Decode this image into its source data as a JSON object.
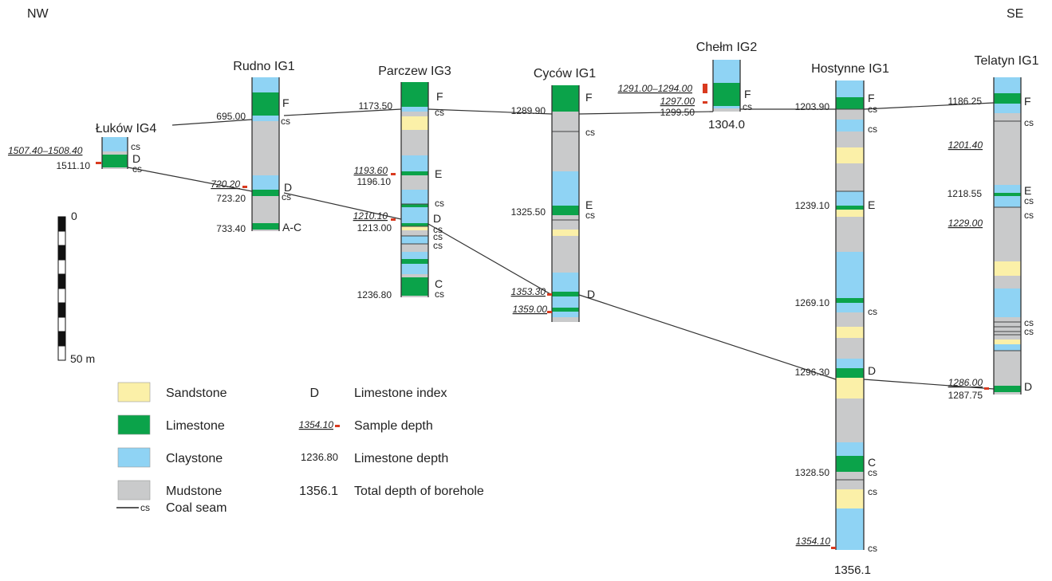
{
  "orientation": {
    "left": "NW",
    "right": "SE"
  },
  "colors": {
    "sandstone": "#fbf0a8",
    "limestone": "#0ba34a",
    "claystone": "#8fd3f4",
    "mudstone": "#c9cacb",
    "sample": "#d93a1f",
    "line": "#333333"
  },
  "boreholes": [
    {
      "id": "lukow",
      "name": "Łuków IG4",
      "labels": [
        {
          "text": "1507.40–1508.40",
          "kind": "sample",
          "underline": true
        },
        {
          "text": "1511.10",
          "kind": "depth"
        },
        {
          "text": "cs",
          "kind": "index"
        },
        {
          "text": "D",
          "kind": "index"
        },
        {
          "text": "cs",
          "kind": "index"
        }
      ]
    },
    {
      "id": "rudno",
      "name": "Rudno IG1",
      "labels": [
        {
          "text": "695.00",
          "kind": "depth"
        },
        {
          "text": "F",
          "kind": "index"
        },
        {
          "text": "cs",
          "kind": "index"
        },
        {
          "text": "720.20",
          "kind": "sample",
          "underline": true
        },
        {
          "text": "723.20",
          "kind": "depth"
        },
        {
          "text": "D",
          "kind": "index"
        },
        {
          "text": "cs",
          "kind": "index"
        },
        {
          "text": "733.40",
          "kind": "depth"
        },
        {
          "text": "A-C",
          "kind": "index"
        }
      ]
    },
    {
      "id": "parczew",
      "name": "Parczew IG3",
      "labels": [
        {
          "text": "1173.50",
          "kind": "depth"
        },
        {
          "text": "F",
          "kind": "index"
        },
        {
          "text": "cs",
          "kind": "index"
        },
        {
          "text": "1193.60",
          "kind": "sample",
          "underline": true
        },
        {
          "text": "1196.10",
          "kind": "depth"
        },
        {
          "text": "E",
          "kind": "index"
        },
        {
          "text": "cs",
          "kind": "index"
        },
        {
          "text": "1210.10",
          "kind": "sample",
          "underline": true
        },
        {
          "text": "1213.00",
          "kind": "depth"
        },
        {
          "text": "D",
          "kind": "index"
        },
        {
          "text": "cs",
          "kind": "index"
        },
        {
          "text": "cs",
          "kind": "index"
        },
        {
          "text": "cs",
          "kind": "index"
        },
        {
          "text": "1236.80",
          "kind": "depth"
        },
        {
          "text": "C",
          "kind": "index"
        },
        {
          "text": "cs",
          "kind": "index"
        }
      ]
    },
    {
      "id": "cycow",
      "name": "Cyców IG1",
      "labels": [
        {
          "text": "1289.90",
          "kind": "depth"
        },
        {
          "text": "F",
          "kind": "index"
        },
        {
          "text": "cs",
          "kind": "index"
        },
        {
          "text": "1325.50",
          "kind": "depth"
        },
        {
          "text": "E",
          "kind": "index"
        },
        {
          "text": "cs",
          "kind": "index"
        },
        {
          "text": "1353.30",
          "kind": "sample",
          "underline": true
        },
        {
          "text": "D",
          "kind": "index"
        },
        {
          "text": "1359.00",
          "kind": "sample",
          "underline": true
        }
      ]
    },
    {
      "id": "chelm",
      "name": "Chełm IG2",
      "labels": [
        {
          "text": "1291.00–1294.00",
          "kind": "sample",
          "underline": true
        },
        {
          "text": "1297.00",
          "kind": "sample",
          "underline": true
        },
        {
          "text": "1299.50",
          "kind": "depth"
        },
        {
          "text": "F",
          "kind": "index"
        },
        {
          "text": "cs",
          "kind": "index"
        },
        {
          "text": "1304.0",
          "kind": "total"
        }
      ]
    },
    {
      "id": "hostynne",
      "name": "Hostynne IG1",
      "labels": [
        {
          "text": "1203.90",
          "kind": "depth"
        },
        {
          "text": "F",
          "kind": "index"
        },
        {
          "text": "cs",
          "kind": "index"
        },
        {
          "text": "cs",
          "kind": "index"
        },
        {
          "text": "1239.10",
          "kind": "depth"
        },
        {
          "text": "E",
          "kind": "index"
        },
        {
          "text": "1269.10",
          "kind": "depth"
        },
        {
          "text": "cs",
          "kind": "index"
        },
        {
          "text": "1296.30",
          "kind": "depth"
        },
        {
          "text": "D",
          "kind": "index"
        },
        {
          "text": "1328.50",
          "kind": "depth"
        },
        {
          "text": "C",
          "kind": "index"
        },
        {
          "text": "cs",
          "kind": "index"
        },
        {
          "text": "cs",
          "kind": "index"
        },
        {
          "text": "1354.10",
          "kind": "sample",
          "underline": true
        },
        {
          "text": "cs",
          "kind": "index"
        },
        {
          "text": "1356.1",
          "kind": "total"
        }
      ]
    },
    {
      "id": "telatyn",
      "name": "Telatyn IG1",
      "labels": [
        {
          "text": "1186.25",
          "kind": "depth"
        },
        {
          "text": "F",
          "kind": "index"
        },
        {
          "text": "cs",
          "kind": "index"
        },
        {
          "text": "1201.40",
          "kind": "sample",
          "underline": true
        },
        {
          "text": "1218.55",
          "kind": "depth"
        },
        {
          "text": "E",
          "kind": "index"
        },
        {
          "text": "cs",
          "kind": "index"
        },
        {
          "text": "cs",
          "kind": "index"
        },
        {
          "text": "1229.00",
          "kind": "sample",
          "underline": true
        },
        {
          "text": "cs",
          "kind": "index"
        },
        {
          "text": "cs",
          "kind": "index"
        },
        {
          "text": "1286.00",
          "kind": "sample",
          "underline": true
        },
        {
          "text": "1287.75",
          "kind": "depth"
        },
        {
          "text": "D",
          "kind": "index"
        }
      ]
    }
  ],
  "scale": {
    "top": "0",
    "bottom": "50 m"
  },
  "legend": {
    "lithology": [
      {
        "label": "Sandstone",
        "color": "#fbf0a8"
      },
      {
        "label": "Limestone",
        "color": "#0ba34a"
      },
      {
        "label": "Claystone",
        "color": "#8fd3f4"
      },
      {
        "label": "Mudstone",
        "color": "#c9cacb"
      }
    ],
    "coal": {
      "mark": "cs",
      "label": "Coal seam"
    },
    "keys": [
      {
        "example": "D",
        "label": "Limestone index"
      },
      {
        "example": "1354.10",
        "label": "Sample depth"
      },
      {
        "example": "1236.80",
        "label": "Limestone depth"
      },
      {
        "example": "1356.1",
        "label": "Total depth of borehole"
      }
    ]
  }
}
